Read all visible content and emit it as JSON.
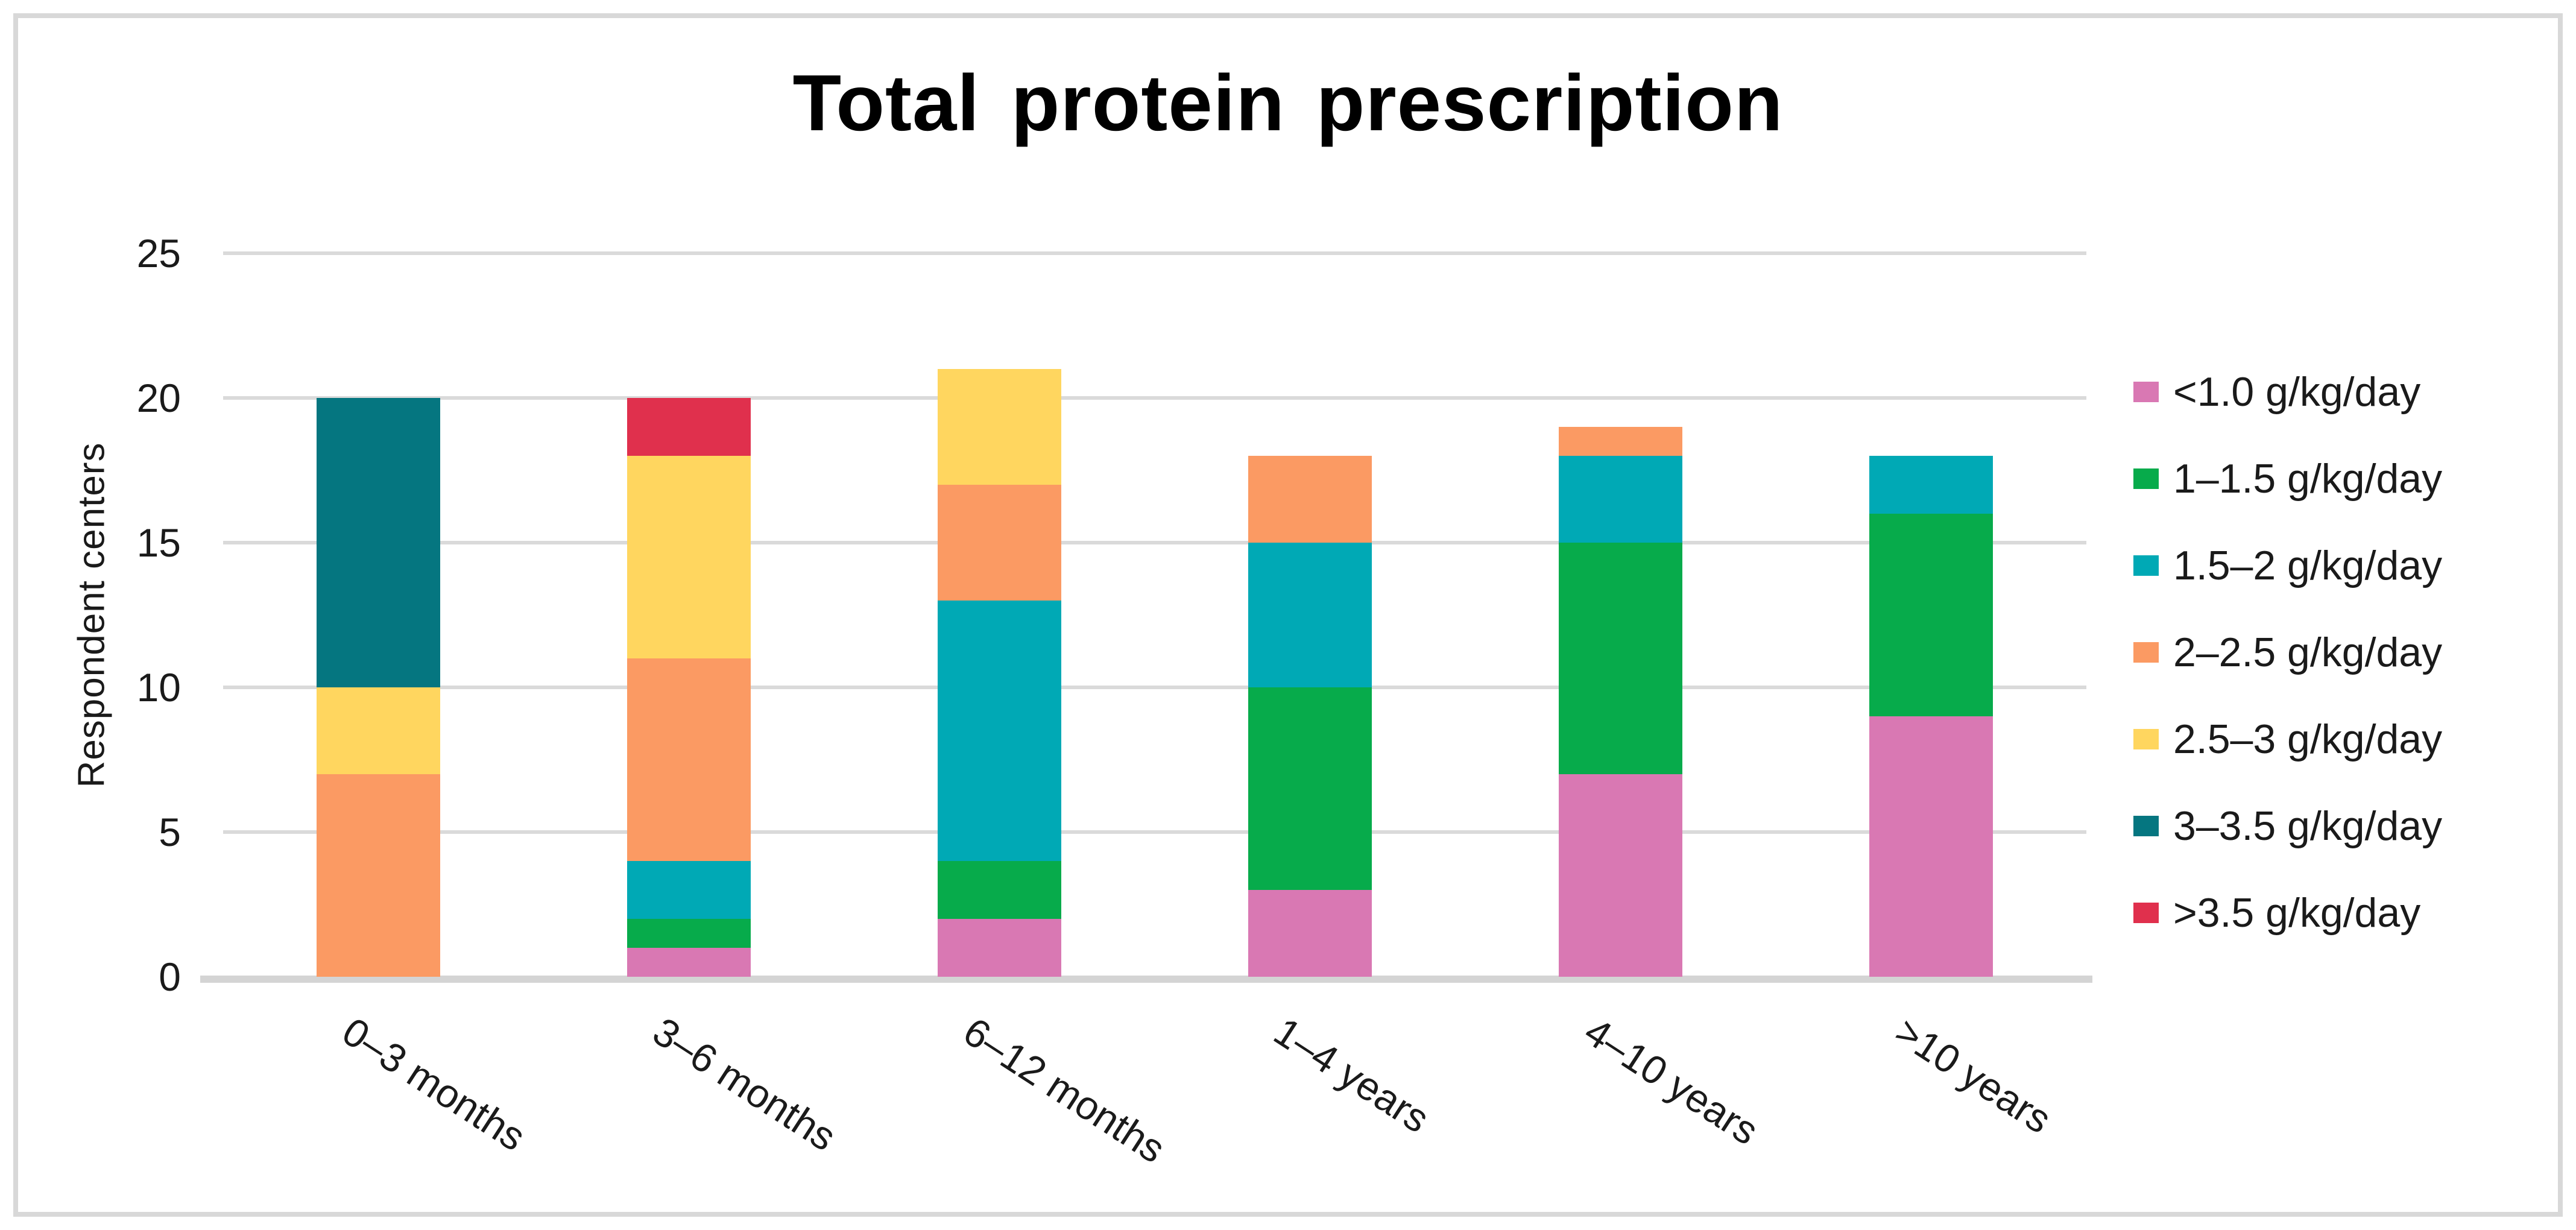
{
  "figure": {
    "title": "Total protein prescription"
  },
  "chart_data": {
    "type": "bar",
    "stacked": true,
    "title": "Total protein prescription",
    "xlabel": "",
    "ylabel": "Respondent centers",
    "ylim": [
      0,
      25
    ],
    "yticks": [
      0,
      5,
      10,
      15,
      20,
      25
    ],
    "grid": "horizontal",
    "legend_position": "right",
    "categories": [
      "0–3 months",
      "3–6 months",
      "6–12 months",
      "1–4 years",
      "4–10 years",
      ">10 years"
    ],
    "series": [
      {
        "name": "<1.0 g/kg/day",
        "color": "#D978B3",
        "values": [
          0,
          1,
          2,
          3,
          7,
          9
        ]
      },
      {
        "name": "1–1.5 g/kg/day",
        "color": "#07AB4B",
        "values": [
          0,
          1,
          2,
          7,
          8,
          7
        ]
      },
      {
        "name": "1.5–2 g/kg/day",
        "color": "#00A9B5",
        "values": [
          0,
          2,
          9,
          5,
          3,
          2
        ]
      },
      {
        "name": "2–2.5 g/kg/day",
        "color": "#FB9A63",
        "values": [
          7,
          7,
          4,
          3,
          1,
          0
        ]
      },
      {
        "name": "2.5–3 g/kg/day",
        "color": "#FFD65F",
        "values": [
          3,
          7,
          4,
          0,
          0,
          0
        ]
      },
      {
        "name": "3–3.5 g/kg/day",
        "color": "#057680",
        "values": [
          10,
          0,
          0,
          0,
          0,
          0
        ]
      },
      {
        "name": ">3.5 g/kg/day",
        "color": "#E0304D",
        "values": [
          0,
          2,
          0,
          0,
          0,
          0
        ]
      }
    ]
  },
  "colors": {
    "background": "#FFFFFF",
    "frame_border": "#D8D8D8",
    "gridline": "#DADADA",
    "baseline": "#D4D4D4",
    "text": "#1A1A1A"
  }
}
